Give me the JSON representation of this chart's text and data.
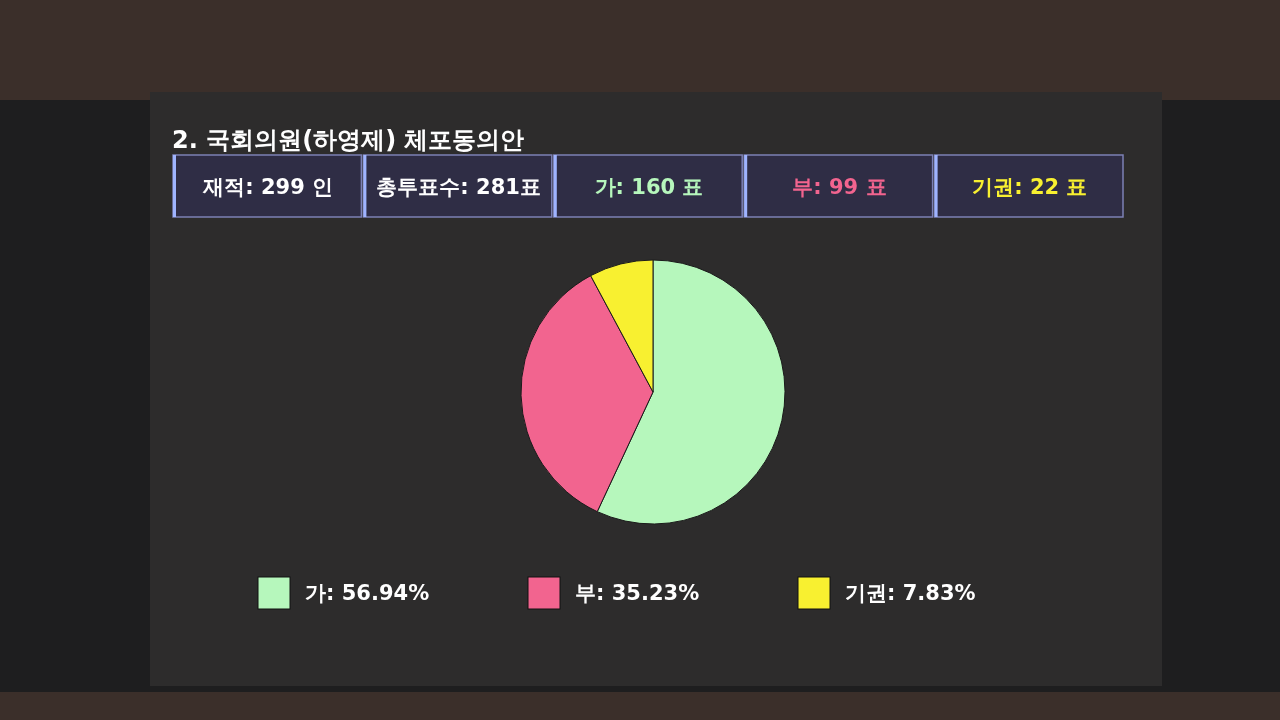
{
  "chart_data": {
    "type": "pie",
    "title": "2. 국회의원(하영제) 체포동의안",
    "annotations": [
      "재적: 299 인",
      "총투표수: 281표",
      "가: 160 표",
      "부: 99 표",
      "기권: 22 표"
    ],
    "categories": [
      "가: 56.94%",
      "부: 35.23%",
      "기권: 7.83%"
    ],
    "values": [
      56.94,
      35.23,
      7.83
    ],
    "colors": [
      "#b6f7bc",
      "#f2648f",
      "#f8f030"
    ],
    "legend": "bottom"
  }
}
